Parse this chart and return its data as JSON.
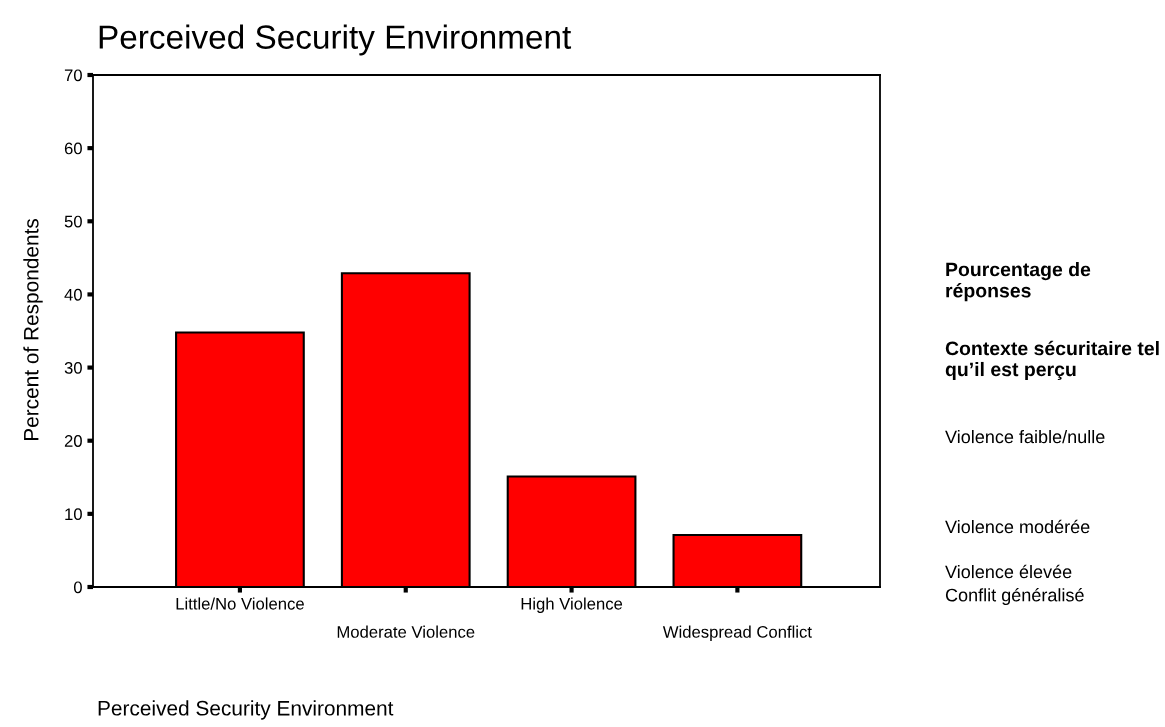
{
  "chart_data": {
    "type": "bar",
    "title": "Perceived Security Environment",
    "xlabel": "Perceived Security Environment",
    "ylabel": "Percent of Respondents",
    "categories": [
      "Little/No Violence",
      "Moderate Violence",
      "High Violence",
      "Widespread Conflict"
    ],
    "values": [
      34.8,
      42.9,
      15.1,
      7.1
    ],
    "color": "#ff0000",
    "ylim": [
      0,
      70
    ],
    "yticks": [
      0,
      10,
      20,
      30,
      40,
      50,
      60,
      70
    ],
    "grid": false,
    "annotations": [
      "Pourcentage de réponses",
      "Contexte sécuritaire tel qu’il est perçu",
      "Violence faible/nulle",
      "Violence modérée",
      "Violence élevée",
      "Conflit généralisé"
    ]
  }
}
